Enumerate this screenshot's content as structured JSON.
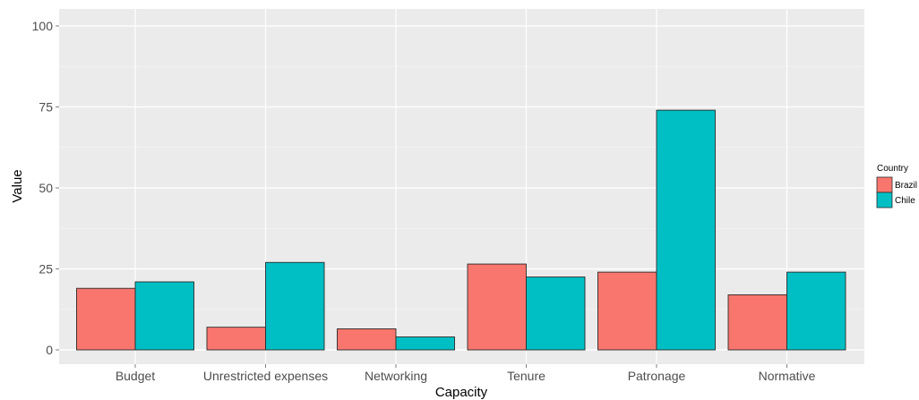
{
  "chart_data": {
    "type": "bar",
    "title": "",
    "xlabel": "Capacity",
    "ylabel": "Value",
    "categories": [
      "Budget",
      "Unrestricted expenses",
      "Networking",
      "Tenure",
      "Patronage",
      "Normative"
    ],
    "series": [
      {
        "name": "Brazil",
        "color": "#F8766D",
        "values": [
          19,
          7,
          6.5,
          26.5,
          24,
          17
        ]
      },
      {
        "name": "Chile",
        "color": "#00BFC4",
        "values": [
          21,
          27,
          4,
          22.5,
          74,
          24
        ]
      }
    ],
    "ylim": [
      0,
      100
    ],
    "yticks": [
      0,
      25,
      50,
      75,
      100
    ],
    "legend": {
      "title": "Country",
      "position": "right"
    },
    "grid": true,
    "panel_background": "#EBEBEB",
    "grid_color": "#FFFFFF"
  }
}
